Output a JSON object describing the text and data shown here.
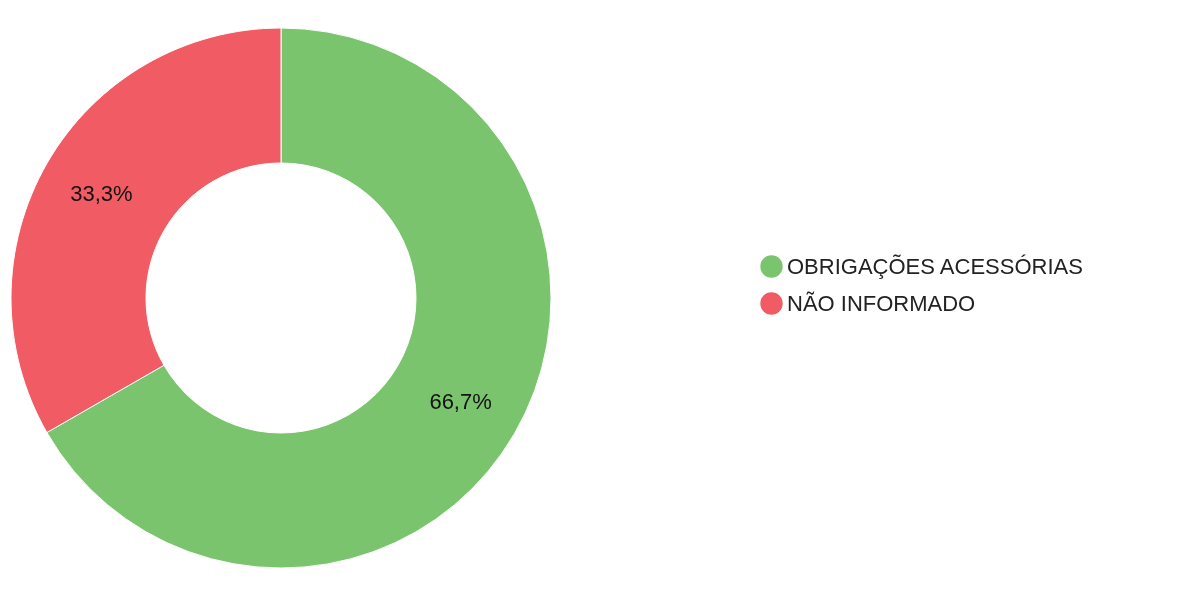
{
  "chart_data": {
    "type": "donut",
    "categories": [
      "OBRIGAÇÕES ACESSÓRIAS",
      "NÃO INFORMADO"
    ],
    "values": [
      66.7,
      33.3
    ],
    "colors": [
      "#7bc46e",
      "#f05b64"
    ],
    "value_labels": [
      "66,7%",
      "33,3%"
    ],
    "legend": "right"
  }
}
